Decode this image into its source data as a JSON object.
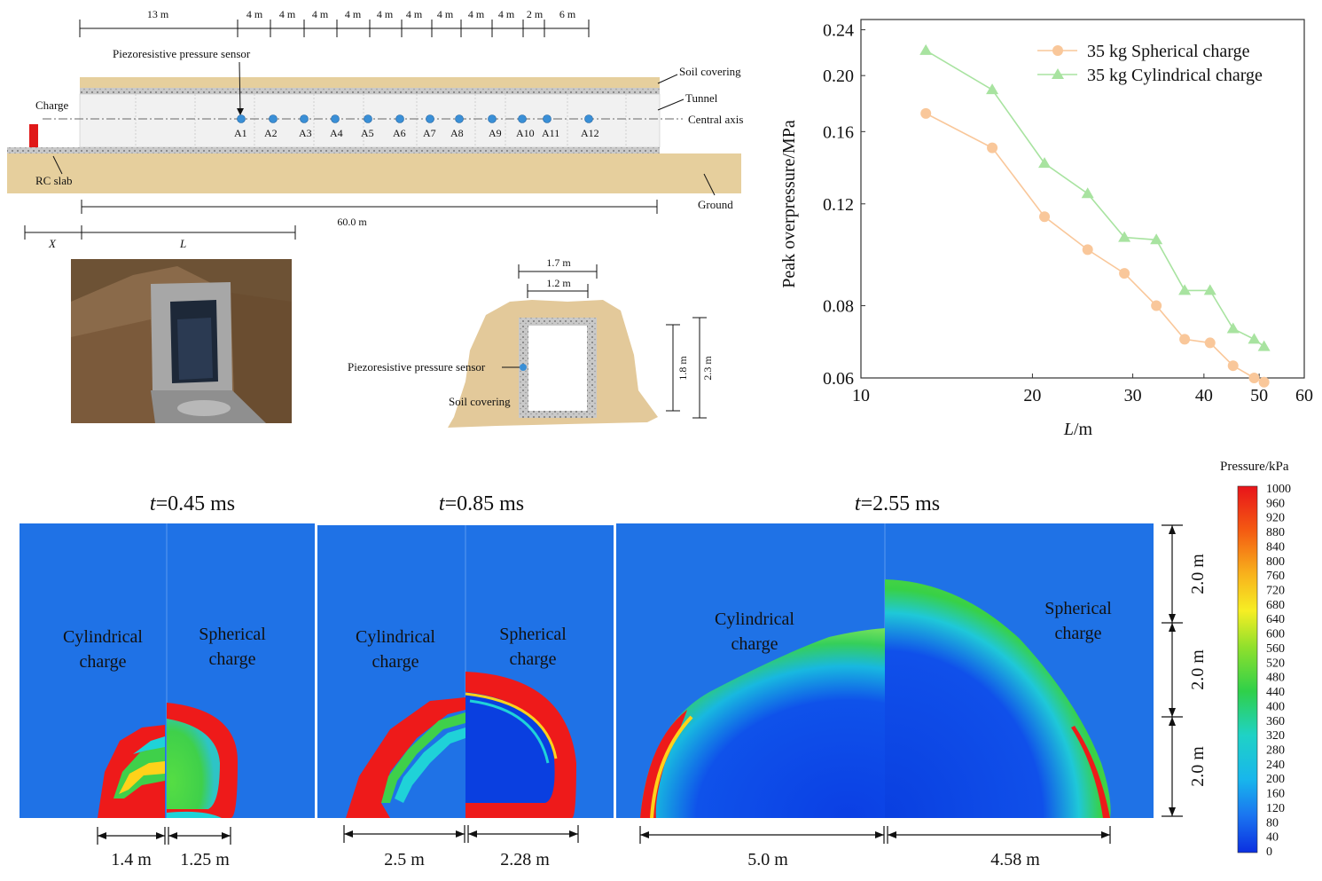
{
  "layout_figure": {
    "segments": [
      "13 m",
      "4 m",
      "4 m",
      "4 m",
      "4 m",
      "4 m",
      "4 m",
      "4 m",
      "4 m",
      "4 m",
      "2 m",
      "6 m"
    ],
    "labels": {
      "piezo": "Piezoresistive pressure sensor",
      "soil": "Soil covering",
      "tunnel": "Tunnel",
      "axis": "Central axis",
      "charge": "Charge",
      "slab": "RC slab",
      "ground": "Ground",
      "total": "60.0 m",
      "x": "X",
      "l": "L"
    },
    "sensors": [
      "A1",
      "A2",
      "A3",
      "A4",
      "A5",
      "A6",
      "A7",
      "A8",
      "A9",
      "A10",
      "A11",
      "A12"
    ]
  },
  "section_figure": {
    "w_outer": "1.7 m",
    "w_inner": "1.2 m",
    "h_inner": "1.8 m",
    "h_outer": "2.3 m",
    "sensor": "Piezoresistive pressure sensor",
    "soil": "Soil covering"
  },
  "chart_data": {
    "type": "line",
    "xlabel_italic": "L",
    "xlabel_unit": "/m",
    "ylabel": "Peak overpressure/MPa",
    "xscale": "log",
    "yscale": "log",
    "xlim": [
      10,
      60
    ],
    "ylim": [
      0.06,
      0.25
    ],
    "xticks": [
      10,
      20,
      30,
      40,
      50,
      60
    ],
    "xtick_labels": [
      "10",
      "20",
      "30",
      "40",
      "50",
      "60"
    ],
    "yticks": [
      0.06,
      0.08,
      0.12,
      0.16,
      0.2,
      0.24
    ],
    "ytick_labels": [
      "0.06",
      "0.08",
      "0.12",
      "0.16",
      "0.20",
      "0.24"
    ],
    "legend_position": "top-right",
    "series": [
      {
        "name": "35 kg Spherical charge",
        "color": "#f9c79a",
        "marker": "circle",
        "x": [
          13,
          17,
          21,
          25,
          29,
          33,
          37,
          41,
          45,
          49,
          51
        ],
        "y": [
          0.172,
          0.15,
          0.114,
          0.1,
          0.091,
          0.08,
          0.07,
          0.069,
          0.063,
          0.06,
          0.059
        ]
      },
      {
        "name": "35 kg Cylindrical charge",
        "color": "#a8e3a0",
        "marker": "triangle",
        "x": [
          13,
          17,
          21,
          25,
          29,
          33,
          37,
          41,
          45,
          49,
          51
        ],
        "y": [
          0.221,
          0.189,
          0.141,
          0.125,
          0.105,
          0.104,
          0.085,
          0.085,
          0.073,
          0.07,
          0.068
        ]
      }
    ]
  },
  "sim_panels": [
    {
      "t_italic": "t",
      "t_value": "=0.45 ms",
      "left_label": [
        "Cylindrical",
        "charge"
      ],
      "right_label": [
        "Spherical",
        "charge"
      ],
      "dim_left": "1.4 m",
      "dim_right": "1.25 m"
    },
    {
      "t_italic": "t",
      "t_value": "=0.85 ms",
      "left_label": [
        "Cylindrical",
        "charge"
      ],
      "right_label": [
        "Spherical",
        "charge"
      ],
      "dim_left": "2.5 m",
      "dim_right": "2.28 m"
    },
    {
      "t_italic": "t",
      "t_value": "=2.55 ms",
      "left_label": [
        "Cylindrical",
        "charge"
      ],
      "right_label": [
        "Spherical",
        "charge"
      ],
      "dim_left": "5.0 m",
      "dim_right": "4.58 m"
    }
  ],
  "height_dims": [
    "2.0 m",
    "2.0 m",
    "2.0 m"
  ],
  "colorbar": {
    "title": "Pressure/kPa",
    "ticks": [
      "1000",
      "960",
      "920",
      "880",
      "840",
      "800",
      "760",
      "720",
      "680",
      "640",
      "600",
      "560",
      "520",
      "480",
      "440",
      "400",
      "360",
      "320",
      "280",
      "240",
      "200",
      "160",
      "120",
      "80",
      "40",
      "0"
    ]
  },
  "colors": {
    "background_blue": "#1f72e6",
    "deep_blue": "#0a3fe0",
    "red": "#ee1a1a",
    "green": "#3fd04a",
    "cyan": "#1fd2d8",
    "soil": "#e6cf9d",
    "concrete": "#f2f2f2"
  }
}
